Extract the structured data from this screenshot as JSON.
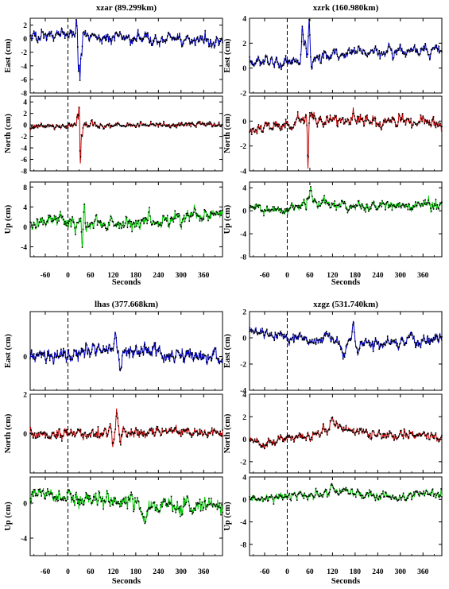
{
  "x_axis": {
    "label": "Seconds",
    "range": [
      -100,
      410
    ],
    "ticks": [
      -60,
      0,
      60,
      120,
      180,
      240,
      300,
      360
    ]
  },
  "colors": {
    "east": "#0000c8",
    "north": "#c80000",
    "up": "#00c800",
    "points": "#000000",
    "event_line": "#000000"
  },
  "chart_data": [
    {
      "type": "line",
      "title": "xzar (89.299km)",
      "panels": [
        {
          "component": "east",
          "ylabel": "East (cm)",
          "ylim": [
            -8,
            3
          ],
          "yticks": [
            2,
            0,
            -2,
            -4,
            -6,
            -8
          ],
          "noise": 0.35,
          "trend": 0.6,
          "baseline": [
            [
              -100,
              0.3
            ],
            [
              0,
              0.8
            ],
            [
              100,
              0.2
            ],
            [
              250,
              0.0
            ],
            [
              410,
              -0.6
            ]
          ],
          "events": [
            [
              22,
              1.8,
              2.5
            ],
            [
              28,
              -5.5,
              2
            ],
            [
              32,
              -7.0,
              2
            ],
            [
              37,
              -3.0,
              2
            ]
          ]
        },
        {
          "component": "north",
          "ylabel": "North (cm)",
          "ylim": [
            -8,
            5
          ],
          "yticks": [
            4,
            2,
            0,
            -2,
            -4,
            -6,
            -8
          ],
          "noise": 0.3,
          "trend": 0.3,
          "baseline": [
            [
              -100,
              -0.3
            ],
            [
              100,
              0.0
            ],
            [
              250,
              -0.1
            ],
            [
              410,
              0.2
            ]
          ],
          "events": [
            [
              25,
              1.5,
              2
            ],
            [
              30,
              4.0,
              2
            ],
            [
              33,
              -7.0,
              2
            ],
            [
              38,
              -2.0,
              2
            ]
          ]
        },
        {
          "component": "up",
          "ylabel": "Up (cm)",
          "ylim": [
            -6,
            9
          ],
          "yticks": [
            8,
            4,
            0,
            -4
          ],
          "noise": 0.9,
          "trend": 0.8,
          "baseline": [
            [
              -100,
              0.0
            ],
            [
              0,
              1.5
            ],
            [
              50,
              0.5
            ],
            [
              200,
              1.0
            ],
            [
              410,
              2.5
            ]
          ],
          "events": [
            [
              38,
              -5.0,
              2
            ],
            [
              44,
              5.5,
              2
            ],
            [
              20,
              -2.0,
              3
            ]
          ]
        }
      ]
    },
    {
      "type": "line",
      "title": "xzrk (160.980km)",
      "panels": [
        {
          "component": "east",
          "ylabel": "East (cm)",
          "ylim": [
            -2,
            4
          ],
          "yticks": [
            4,
            2,
            0,
            -2
          ],
          "noise": 0.2,
          "trend": 0.3,
          "baseline": [
            [
              -100,
              0.6
            ],
            [
              0,
              0.4
            ],
            [
              100,
              1.1
            ],
            [
              300,
              1.3
            ],
            [
              410,
              1.4
            ]
          ],
          "events": [
            [
              40,
              2.6,
              3
            ],
            [
              48,
              1.2,
              3
            ],
            [
              58,
              3.3,
              2.5
            ],
            [
              65,
              -1.0,
              2
            ]
          ]
        },
        {
          "component": "north",
          "ylabel": "North (cm)",
          "ylim": [
            -4,
            2
          ],
          "yticks": [
            0,
            -2,
            -4
          ],
          "noise": 0.25,
          "trend": 0.3,
          "baseline": [
            [
              -100,
              -0.7
            ],
            [
              0,
              -0.3
            ],
            [
              100,
              0.0
            ],
            [
              300,
              0.0
            ],
            [
              410,
              -0.3
            ]
          ],
          "events": [
            [
              50,
              0.9,
              3
            ],
            [
              55,
              -3.5,
              2
            ],
            [
              62,
              0.8,
              4
            ],
            [
              70,
              0.5,
              5
            ]
          ]
        },
        {
          "component": "up",
          "ylabel": "Up (cm)",
          "ylim": [
            -8,
            5
          ],
          "yticks": [
            4,
            0,
            -4,
            -8
          ],
          "noise": 0.6,
          "trend": 0.5,
          "baseline": [
            [
              -100,
              0.5
            ],
            [
              0,
              0.0
            ],
            [
              60,
              1.8
            ],
            [
              200,
              0.5
            ],
            [
              410,
              1.2
            ]
          ],
          "events": [
            [
              62,
              2.5,
              3
            ],
            [
              50,
              -1.5,
              3
            ]
          ]
        }
      ]
    },
    {
      "type": "line",
      "title": "lhas (377.668km)",
      "panels": [
        {
          "component": "east",
          "ylabel": "East (cm)",
          "ylim": [
            -1.5,
            2
          ],
          "yticks": [
            0
          ],
          "noise": 0.2,
          "trend": 0.2,
          "baseline": [
            [
              -100,
              0.0
            ],
            [
              100,
              0.3
            ],
            [
              200,
              0.2
            ],
            [
              410,
              -0.1
            ]
          ],
          "events": [
            [
              125,
              0.7,
              5
            ],
            [
              140,
              -0.8,
              5
            ]
          ]
        },
        {
          "component": "north",
          "ylabel": "North (cm)",
          "ylim": [
            -2,
            2
          ],
          "yticks": [
            2,
            0
          ],
          "noise": 0.18,
          "trend": 0.2,
          "baseline": [
            [
              -100,
              -0.1
            ],
            [
              100,
              0.0
            ],
            [
              300,
              0.1
            ],
            [
              410,
              0.0
            ]
          ],
          "events": [
            [
              110,
              0.4,
              6
            ],
            [
              120,
              -0.7,
              4
            ],
            [
              130,
              0.9,
              4
            ],
            [
              140,
              -0.4,
              5
            ]
          ]
        },
        {
          "component": "up",
          "ylabel": "Up (cm)",
          "ylim": [
            -6,
            3
          ],
          "yticks": [
            0,
            -4
          ],
          "noise": 0.5,
          "trend": 0.6,
          "baseline": [
            [
              -100,
              1.0
            ],
            [
              0,
              0.5
            ],
            [
              100,
              0.5
            ],
            [
              200,
              -0.6
            ],
            [
              300,
              -0.5
            ],
            [
              410,
              -0.3
            ]
          ],
          "events": []
        }
      ]
    },
    {
      "type": "line",
      "title": "xzgz (531.740km)",
      "panels": [
        {
          "component": "east",
          "ylabel": "East (cm)",
          "ylim": [
            -4,
            2
          ],
          "yticks": [
            2,
            0,
            -2,
            -4
          ],
          "noise": 0.15,
          "trend": 0.3,
          "baseline": [
            [
              -100,
              0.6
            ],
            [
              0,
              0.0
            ],
            [
              100,
              0.0
            ],
            [
              200,
              -0.5
            ],
            [
              300,
              -0.3
            ],
            [
              410,
              -0.2
            ]
          ],
          "events": [
            [
              150,
              -1.4,
              6
            ],
            [
              175,
              1.5,
              4
            ],
            [
              190,
              -0.6,
              5
            ]
          ]
        },
        {
          "component": "north",
          "ylabel": "North (cm)",
          "ylim": [
            -3,
            4
          ],
          "yticks": [
            4,
            2,
            0,
            -2
          ],
          "noise": 0.2,
          "trend": 0.3,
          "baseline": [
            [
              -100,
              0.0
            ],
            [
              -60,
              -0.6
            ],
            [
              0,
              0.2
            ],
            [
              150,
              0.9
            ],
            [
              250,
              0.4
            ],
            [
              410,
              0.3
            ]
          ],
          "events": [
            [
              120,
              1.2,
              8
            ]
          ]
        },
        {
          "component": "up",
          "ylabel": "Up (cm)",
          "ylim": [
            -10,
            4
          ],
          "yticks": [
            4,
            0,
            -4,
            -8
          ],
          "noise": 0.5,
          "trend": 0.5,
          "baseline": [
            [
              -100,
              0.0
            ],
            [
              0,
              0.5
            ],
            [
              150,
              1.5
            ],
            [
              250,
              0.5
            ],
            [
              410,
              1.0
            ]
          ],
          "events": [
            [
              120,
              1.5,
              8
            ]
          ]
        }
      ]
    }
  ]
}
